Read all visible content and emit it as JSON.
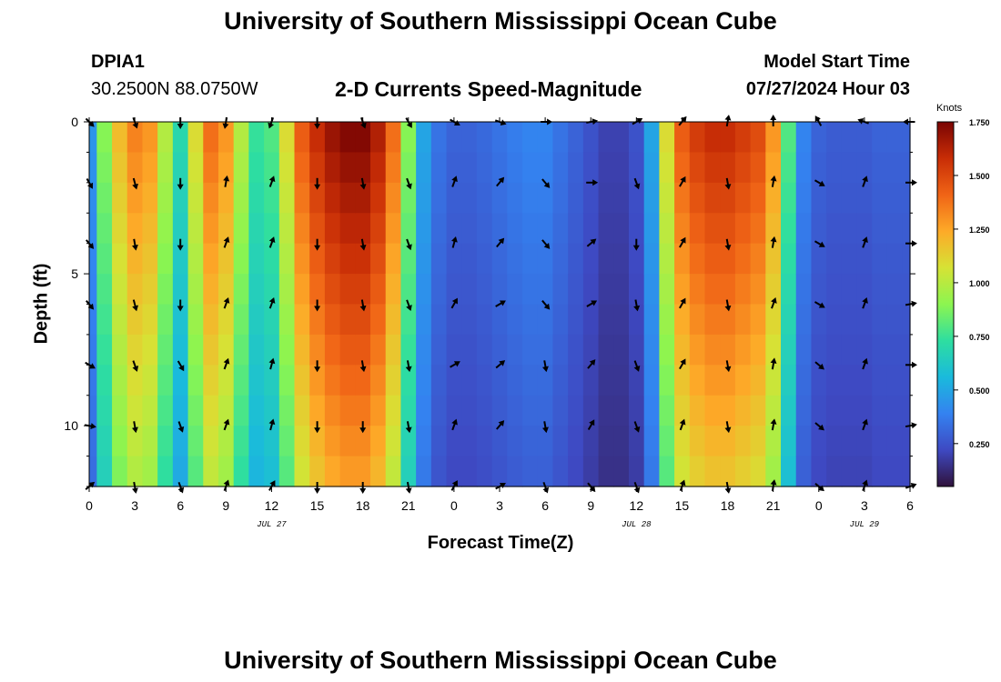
{
  "header": {
    "title": "University of Southern Mississippi Ocean Cube",
    "station_id": "DPIA1",
    "coordinates": "30.2500N  88.0750W",
    "subtitle": "2-D Currents Speed-Magnitude",
    "model_start_label": "Model Start Time",
    "model_start_value": "07/27/2024 Hour 03"
  },
  "footer": {
    "title": "University of Southern Mississippi Ocean Cube"
  },
  "chart_data": {
    "type": "heatmap",
    "title": "2-D Currents Speed-Magnitude",
    "xlabel": "Forecast Time(Z)",
    "ylabel": "Depth (ft)",
    "x_hours_range": [
      0,
      54
    ],
    "x_tick_hours": [
      0,
      3,
      6,
      9,
      12,
      15,
      18,
      21,
      24,
      27,
      30,
      33,
      36,
      39,
      42,
      45,
      48,
      51,
      54
    ],
    "x_tick_labels": [
      "0",
      "3",
      "6",
      "9",
      "12",
      "15",
      "18",
      "21",
      "0",
      "3",
      "6",
      "9",
      "12",
      "15",
      "18",
      "21",
      "0",
      "3",
      "6"
    ],
    "date_labels": [
      {
        "text": "JUL 27",
        "hour": 12
      },
      {
        "text": "JUL 28",
        "hour": 36
      },
      {
        "text": "JUL 29",
        "hour": 51
      }
    ],
    "y_range_ft": [
      0,
      12
    ],
    "y_tick_values": [
      0,
      5,
      10
    ],
    "y_tick_labels": [
      "0",
      "5",
      "10"
    ],
    "colorbar": {
      "unit": "Knots",
      "range": [
        0.05,
        1.75
      ],
      "tick_values": [
        0.25,
        0.5,
        0.75,
        1.0,
        1.25,
        1.5,
        1.75
      ],
      "tick_labels": [
        "0.250",
        "0.500",
        "0.750",
        "1.000",
        "1.250",
        "1.500",
        "1.750"
      ]
    },
    "speed_column_hours": [
      0,
      1,
      2,
      3,
      4,
      5,
      6,
      7,
      8,
      9,
      10,
      11,
      12,
      13,
      14,
      15,
      16,
      17,
      18,
      19,
      20,
      21,
      22,
      23,
      24,
      25,
      26,
      27,
      28,
      29,
      30,
      31,
      32,
      33,
      34,
      35,
      36,
      37,
      38,
      39,
      40,
      41,
      42,
      43,
      44,
      45,
      46,
      47,
      48,
      49,
      50,
      51,
      52,
      53,
      54
    ],
    "speed_surface_knots": [
      0.45,
      0.9,
      1.2,
      1.35,
      1.3,
      1.0,
      0.7,
      1.1,
      1.4,
      1.3,
      1.0,
      0.75,
      0.8,
      1.1,
      1.45,
      1.6,
      1.7,
      1.75,
      1.75,
      1.65,
      1.4,
      0.9,
      0.5,
      0.35,
      0.3,
      0.3,
      0.32,
      0.35,
      0.38,
      0.4,
      0.4,
      0.35,
      0.3,
      0.25,
      0.2,
      0.2,
      0.25,
      0.5,
      1.1,
      1.45,
      1.55,
      1.6,
      1.6,
      1.55,
      1.5,
      1.3,
      0.8,
      0.4,
      0.3,
      0.28,
      0.28,
      0.28,
      0.3,
      0.3,
      0.3
    ],
    "arrow_hours": [
      0,
      3,
      6,
      9,
      12,
      15,
      18,
      21,
      24,
      27,
      30,
      33,
      36,
      39,
      42,
      45,
      48,
      51,
      54
    ],
    "arrow_depths_ft": [
      0,
      2,
      4,
      6,
      8,
      10,
      12
    ],
    "arrow_angles_deg": [
      [
        135,
        160,
        180,
        190,
        200,
        180,
        160,
        150,
        120,
        110,
        90,
        80,
        60,
        40,
        10,
        0,
        330,
        290,
        270
      ],
      [
        150,
        165,
        180,
        10,
        20,
        180,
        170,
        160,
        20,
        40,
        140,
        90,
        160,
        30,
        170,
        10,
        120,
        20,
        90
      ],
      [
        140,
        170,
        180,
        20,
        20,
        180,
        170,
        160,
        15,
        40,
        140,
        50,
        180,
        30,
        170,
        10,
        120,
        20,
        90
      ],
      [
        140,
        165,
        180,
        20,
        20,
        180,
        170,
        160,
        30,
        60,
        140,
        60,
        170,
        30,
        170,
        20,
        120,
        20,
        80
      ],
      [
        120,
        160,
        150,
        20,
        15,
        180,
        170,
        170,
        60,
        50,
        170,
        40,
        160,
        30,
        170,
        10,
        130,
        20,
        90
      ],
      [
        100,
        170,
        160,
        20,
        15,
        180,
        180,
        170,
        20,
        40,
        170,
        30,
        160,
        20,
        170,
        10,
        130,
        20,
        80
      ],
      [
        50,
        170,
        160,
        20,
        30,
        180,
        180,
        170,
        30,
        60,
        160,
        140,
        160,
        20,
        170,
        10,
        130,
        20,
        70
      ]
    ]
  }
}
